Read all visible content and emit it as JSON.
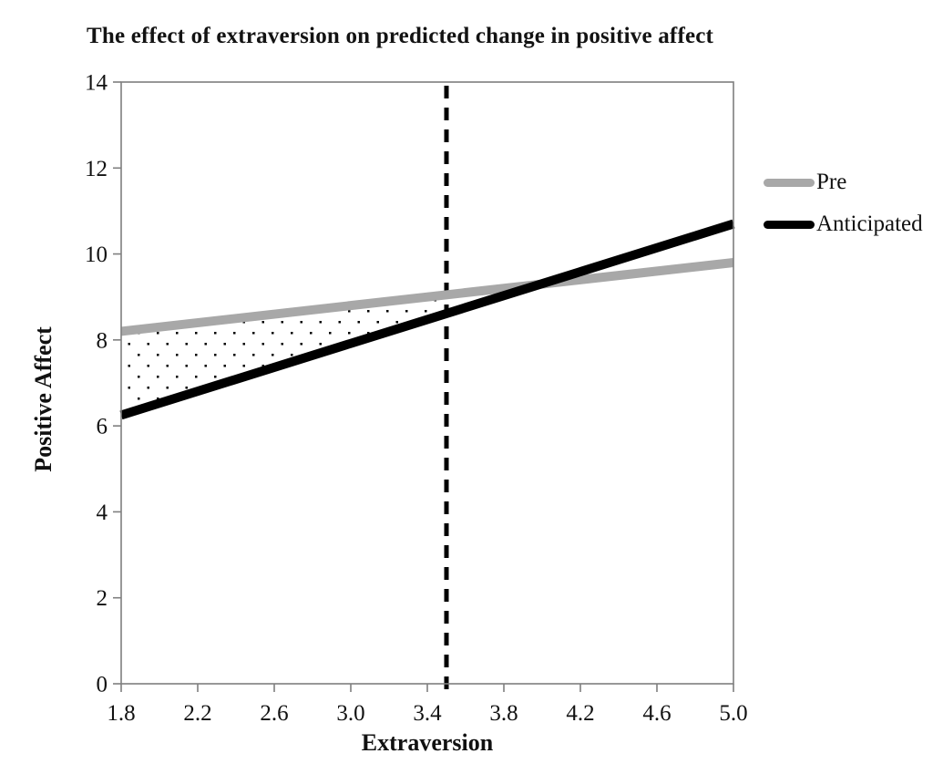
{
  "title": "The effect of extraversion on predicted change in positive affect",
  "legend": {
    "items": [
      {
        "label": "Pre",
        "color": "#a8a8a8"
      },
      {
        "label": "Anticipated",
        "color": "#000000"
      }
    ]
  },
  "chart_data": {
    "type": "line",
    "title": "The effect of extraversion on predicted change in positive affect",
    "xlabel": "Extraversion",
    "ylabel": "Positive Affect",
    "xlim": [
      1.8,
      5.0
    ],
    "ylim": [
      0,
      14
    ],
    "x_ticks": [
      1.8,
      2.2,
      2.6,
      3.0,
      3.4,
      3.8,
      4.2,
      4.6,
      5.0
    ],
    "x_tick_labels": [
      "1.8",
      "2.2",
      "2.6",
      "3.0",
      "3.4",
      "3.8",
      "4.2",
      "4.6",
      "5.0"
    ],
    "y_ticks": [
      0,
      2,
      4,
      6,
      8,
      10,
      12,
      14
    ],
    "y_tick_labels": [
      "0",
      "2",
      "4",
      "6",
      "8",
      "10",
      "12",
      "14"
    ],
    "grid": false,
    "legend_position": "right",
    "series": [
      {
        "name": "Pre",
        "color": "#a8a8a8",
        "x": [
          1.8,
          5.0
        ],
        "y": [
          8.2,
          9.8
        ]
      },
      {
        "name": "Anticipated",
        "color": "#000000",
        "x": [
          1.8,
          5.0
        ],
        "y": [
          6.25,
          10.7
        ]
      }
    ],
    "reference_line": {
      "axis": "x",
      "value": 3.5,
      "style": "dashed",
      "color": "#000000"
    },
    "shaded_region": {
      "between": [
        "Pre",
        "Anticipated"
      ],
      "x_from": 1.8,
      "x_to": 3.5,
      "fill": "dot-pattern",
      "meaning": "gap where Pre exceeds Anticipated below extraversion 3.5"
    },
    "axis_color": "#7f7f7f"
  }
}
